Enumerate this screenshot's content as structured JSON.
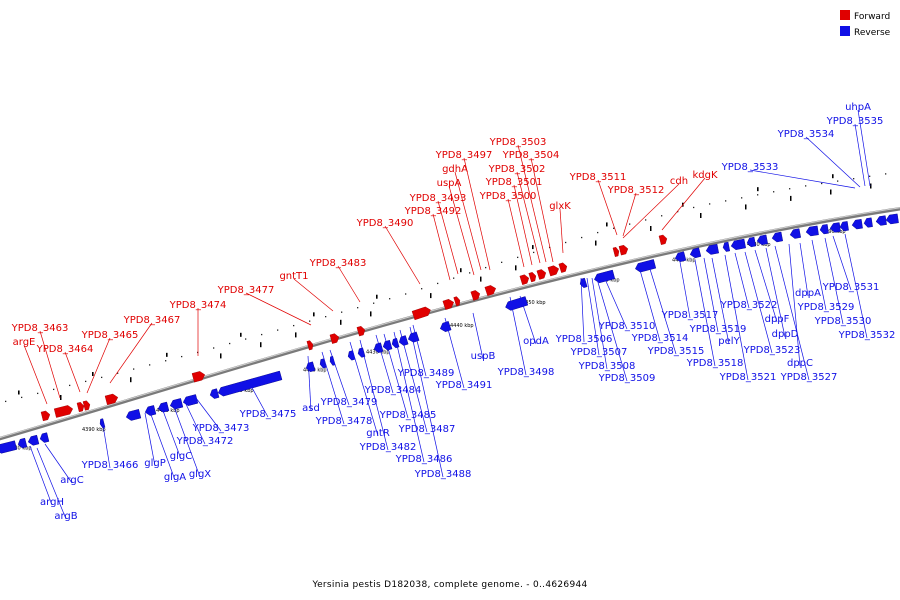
{
  "colors": {
    "forward": "#e00000",
    "reverse": "#1010e6",
    "backbone": "#8a8a8a"
  },
  "legend": {
    "forward_label": "Forward",
    "reverse_label": "Reverse"
  },
  "caption": "Yersinia pestis D182038, complete genome. - 0..4626944",
  "ticks": [
    "4380 kbp",
    "4390 kbp",
    "4400 kbp",
    "4410 kbp",
    "4420 kbp",
    "4430 kbp",
    "4440 kbp",
    "4450 kbp",
    "4460 kbp",
    "4470 kbp",
    "4480 kbp",
    "4490 kbp"
  ],
  "forward_genes": [
    "argE",
    "YPD8_3463",
    "YPD8_3464",
    "YPD8_3465",
    "YPD8_3467",
    "YPD8_3474",
    "YPD8_3477",
    "gntT1",
    "YPD8_3483",
    "YPD8_3490",
    "YPD8_3492",
    "YPD8_3493",
    "uspA",
    "gdhA",
    "YPD8_3497",
    "YPD8_3500",
    "YPD8_3501",
    "YPD8_3502",
    "YPD8_3504",
    "YPD8_3503",
    "glxK",
    "YPD8_3511",
    "YPD8_3512",
    "cdh",
    "kdgK"
  ],
  "reverse_genes": [
    "argB",
    "argH",
    "argC",
    "YPD8_3466",
    "glgP",
    "glgA",
    "glgC",
    "glgX",
    "YPD8_3472",
    "YPD8_3473",
    "YPD8_3475",
    "asd",
    "YPD8_3478",
    "YPD8_3479",
    "gntR",
    "YPD8_3482",
    "YPD8_3484",
    "YPD8_3485",
    "YPD8_3486",
    "YPD8_3487",
    "YPD8_3488",
    "YPD8_3489",
    "YPD8_3491",
    "uspB",
    "YPD8_3498",
    "opdA",
    "YPD8_3506",
    "YPD8_3507",
    "YPD8_3508",
    "YPD8_3509",
    "YPD8_3510",
    "YPD8_3514",
    "YPD8_3515",
    "YPD8_3517",
    "YPD8_3518",
    "YPD8_3519",
    "pelY",
    "YPD8_3521",
    "YPD8_3522",
    "dppF",
    "YPD8_3523",
    "dppD",
    "YPD8_3527",
    "dppC",
    "dppA",
    "YPD8_3529",
    "YPD8_3530",
    "YPD8_3531",
    "YPD8_3532",
    "YPD8_3533",
    "YPD8_3534",
    "YPD8_3535",
    "uhpA"
  ]
}
